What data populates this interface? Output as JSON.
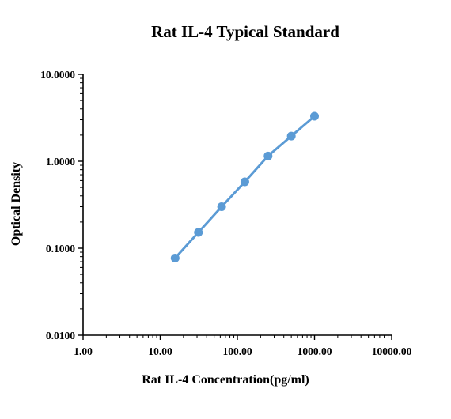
{
  "chart_data": {
    "type": "line",
    "title": "Rat IL-4 Typical Standard",
    "xlabel": "Rat IL-4  Concentration(pg/ml)",
    "ylabel": "Optical Density",
    "xscale": "log",
    "yscale": "log",
    "xlim": [
      1,
      10000
    ],
    "ylim": [
      0.01,
      10
    ],
    "xticks": [
      1,
      10,
      100,
      1000,
      10000
    ],
    "xtick_labels": [
      "1.00",
      "10.00",
      "100.00",
      "1000.00",
      "10000.00"
    ],
    "yticks": [
      0.01,
      0.1,
      1,
      10
    ],
    "ytick_labels": [
      "0.0100",
      "0.1000",
      "1.0000",
      "10.0000"
    ],
    "grid": false,
    "legend": "none",
    "series": [
      {
        "x": [
          15.6,
          31.25,
          62.5,
          125,
          250,
          500,
          1000
        ],
        "y": [
          0.077,
          0.152,
          0.3,
          0.58,
          1.15,
          1.95,
          3.3
        ],
        "color": "#5b9bd5",
        "marker": "circle"
      }
    ]
  }
}
